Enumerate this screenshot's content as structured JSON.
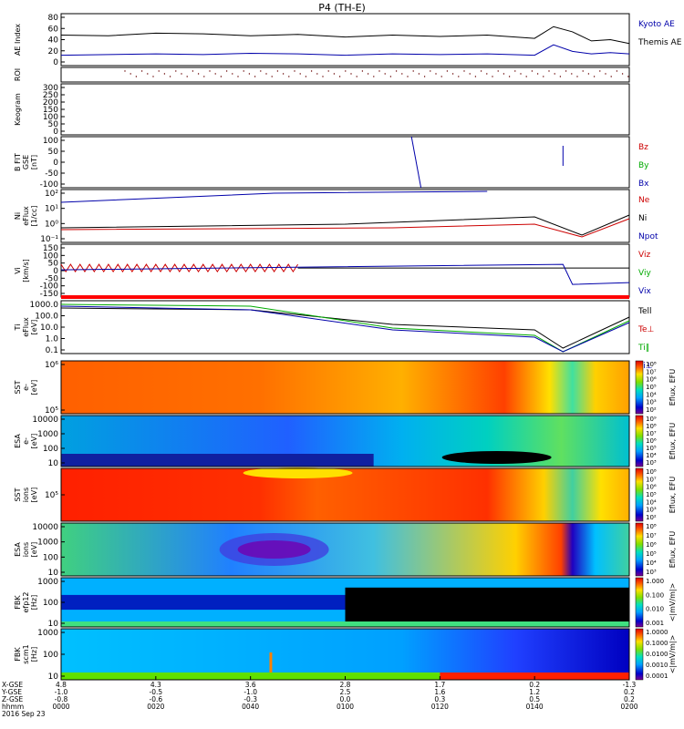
{
  "title": "P4 (TH-E)",
  "chart_data": {
    "type": "line",
    "panels": [
      {
        "key": "ae",
        "ylabel": [
          "AE Index"
        ],
        "ticks": [
          "80",
          "60",
          "40",
          "20",
          "0"
        ],
        "ylim": [
          0,
          80
        ],
        "legend": [
          {
            "name": "Kyoto AE",
            "color": "#0000aa"
          },
          {
            "name": "Themis AE",
            "color": "#000000"
          }
        ],
        "series": [
          {
            "name": "Themis AE",
            "color": "#000000",
            "x": [
              0,
              10,
              20,
              30,
              40,
              50,
              60,
              70,
              80,
              90,
              100,
              104,
              108,
              112,
              116,
              120
            ],
            "y": [
              47,
              46,
              50,
              49,
              46,
              48,
              44,
              47,
              45,
              47,
              42,
              60,
              52,
              38,
              40,
              34
            ]
          },
          {
            "name": "Kyoto AE",
            "color": "#0000aa",
            "x": [
              0,
              10,
              20,
              30,
              40,
              50,
              60,
              70,
              80,
              90,
              100,
              104,
              108,
              112,
              116,
              120
            ],
            "y": [
              16,
              17,
              18,
              17,
              19,
              18,
              16,
              18,
              17,
              18,
              16,
              32,
              22,
              18,
              20,
              18
            ]
          }
        ]
      },
      {
        "key": "roi",
        "ylabel": [
          "ROI"
        ],
        "ticks": [],
        "legend": []
      },
      {
        "key": "keogram",
        "ylabel": [
          "Keogram"
        ],
        "ticks": [
          "300",
          "250",
          "200",
          "150",
          "100",
          "50",
          "0"
        ],
        "legend": []
      },
      {
        "key": "bfit",
        "ylabel": [
          "B FIT",
          "GSE",
          "[nT]"
        ],
        "ticks": [
          "100",
          "50",
          "0",
          "-50",
          "-100"
        ],
        "ylim": [
          -100,
          100
        ],
        "legend": [
          {
            "name": "Bz",
            "color": "#cc0000"
          },
          {
            "name": "By",
            "color": "#00aa00"
          },
          {
            "name": "Bx",
            "color": "#0000aa"
          }
        ]
      },
      {
        "key": "density",
        "ylabel": [
          "Ni",
          "eFlux",
          "[1/cc]"
        ],
        "ticks": [
          "10²",
          "10¹",
          "10⁰",
          "10⁻¹"
        ],
        "legend": [
          {
            "name": "Ne",
            "color": "#cc0000"
          },
          {
            "name": "Ni",
            "color": "#000000"
          },
          {
            "name": "Npot",
            "color": "#0000aa"
          }
        ]
      },
      {
        "key": "velocity",
        "ylabel": [
          "Vi",
          "[km/s]"
        ],
        "ticks": [
          "150",
          "100",
          "50",
          "0",
          "-50",
          "-100",
          "-150"
        ],
        "ylim": [
          -150,
          150
        ],
        "legend": [
          {
            "name": "Viz",
            "color": "#cc0000"
          },
          {
            "name": "Viy",
            "color": "#00aa00"
          },
          {
            "name": "Vix",
            "color": "#0000aa"
          }
        ]
      },
      {
        "key": "temperature",
        "ylabel": [
          "Ti",
          "eFlux",
          "[eV]"
        ],
        "ticks": [
          "1000.0",
          "100.0",
          "10.0",
          "1.0",
          "0.1"
        ],
        "legend": [
          {
            "name": "Tell",
            "color": "#000000"
          },
          {
            "name": "Te⊥",
            "color": "#cc0000"
          },
          {
            "name": "Ti‖",
            "color": "#00aa00"
          },
          {
            "name": "Ti⊥",
            "color": "#0000aa"
          }
        ]
      },
      {
        "key": "sst_e",
        "ylabel": [
          "SST",
          "e-",
          "[eV]"
        ],
        "ticks": [
          "10⁶",
          "10⁵"
        ],
        "cbar": [
          "10⁸",
          "10⁷",
          "10⁶",
          "10⁵",
          "10⁴",
          "10³",
          "10²"
        ],
        "cbar_label": "Eflux, EFU"
      },
      {
        "key": "esa_e",
        "ylabel": [
          "ESA",
          "e-",
          "[eV]"
        ],
        "ticks": [
          "10000",
          "1000",
          "100",
          "10"
        ],
        "cbar": [
          "10⁹",
          "10⁸",
          "10⁷",
          "10⁶",
          "10⁵",
          "10⁴",
          "10³"
        ],
        "cbar_label": "Eflux, EFU"
      },
      {
        "key": "sst_i",
        "ylabel": [
          "SST",
          "ions",
          "[eV]"
        ],
        "ticks": [
          "10⁵"
        ],
        "cbar": [
          "10⁸",
          "10⁷",
          "10⁶",
          "10⁵",
          "10⁴",
          "10³",
          "10²"
        ],
        "cbar_label": "Eflux, EFU"
      },
      {
        "key": "esa_i",
        "ylabel": [
          "ESA",
          "ions",
          "[eV]"
        ],
        "ticks": [
          "10000",
          "1000",
          "100",
          "10"
        ],
        "cbar": [
          "10⁸",
          "10⁷",
          "10⁶",
          "10⁵",
          "10⁴",
          "10³"
        ],
        "cbar_label": "Eflux, EFU"
      },
      {
        "key": "fbk_e",
        "ylabel": [
          "FBK",
          "efp12",
          "[Hz]"
        ],
        "ticks": [
          "1000",
          "100",
          "10"
        ],
        "cbar": [
          "1.000",
          "0.100",
          "0.010",
          "0.001"
        ],
        "cbar_label": "<|mV/m|>"
      },
      {
        "key": "fbk_b",
        "ylabel": [
          "FBK",
          "scm1",
          "[Hz]"
        ],
        "ticks": [
          "1000",
          "100",
          "10"
        ],
        "cbar": [
          "1.0000",
          "0.1000",
          "0.0100",
          "0.0010",
          "0.0001"
        ],
        "cbar_label": "<|mV/m|>"
      }
    ],
    "xaxis": {
      "row_labels": [
        "X-GSE",
        "Y-GSE",
        "Z-GSE",
        "hhmm",
        "2016 Sep 23"
      ],
      "ticks": [
        {
          "rows": [
            "4.8",
            "-1.0",
            "-0.8",
            "0000"
          ]
        },
        {
          "rows": [
            "4.3",
            "-0.5",
            "-0.6",
            "0020"
          ]
        },
        {
          "rows": [
            "3.6",
            "-1.0",
            "-0.3",
            "0040"
          ]
        },
        {
          "rows": [
            "2.8",
            "2.5",
            "0.0",
            "0100"
          ]
        },
        {
          "rows": [
            "1.7",
            "1.6",
            "0.3",
            "0120"
          ]
        },
        {
          "rows": [
            "0.2",
            "1.2",
            "0.5",
            "0140"
          ]
        },
        {
          "rows": [
            "-1.3",
            "0.2",
            "0.2",
            "0200"
          ]
        }
      ]
    }
  }
}
